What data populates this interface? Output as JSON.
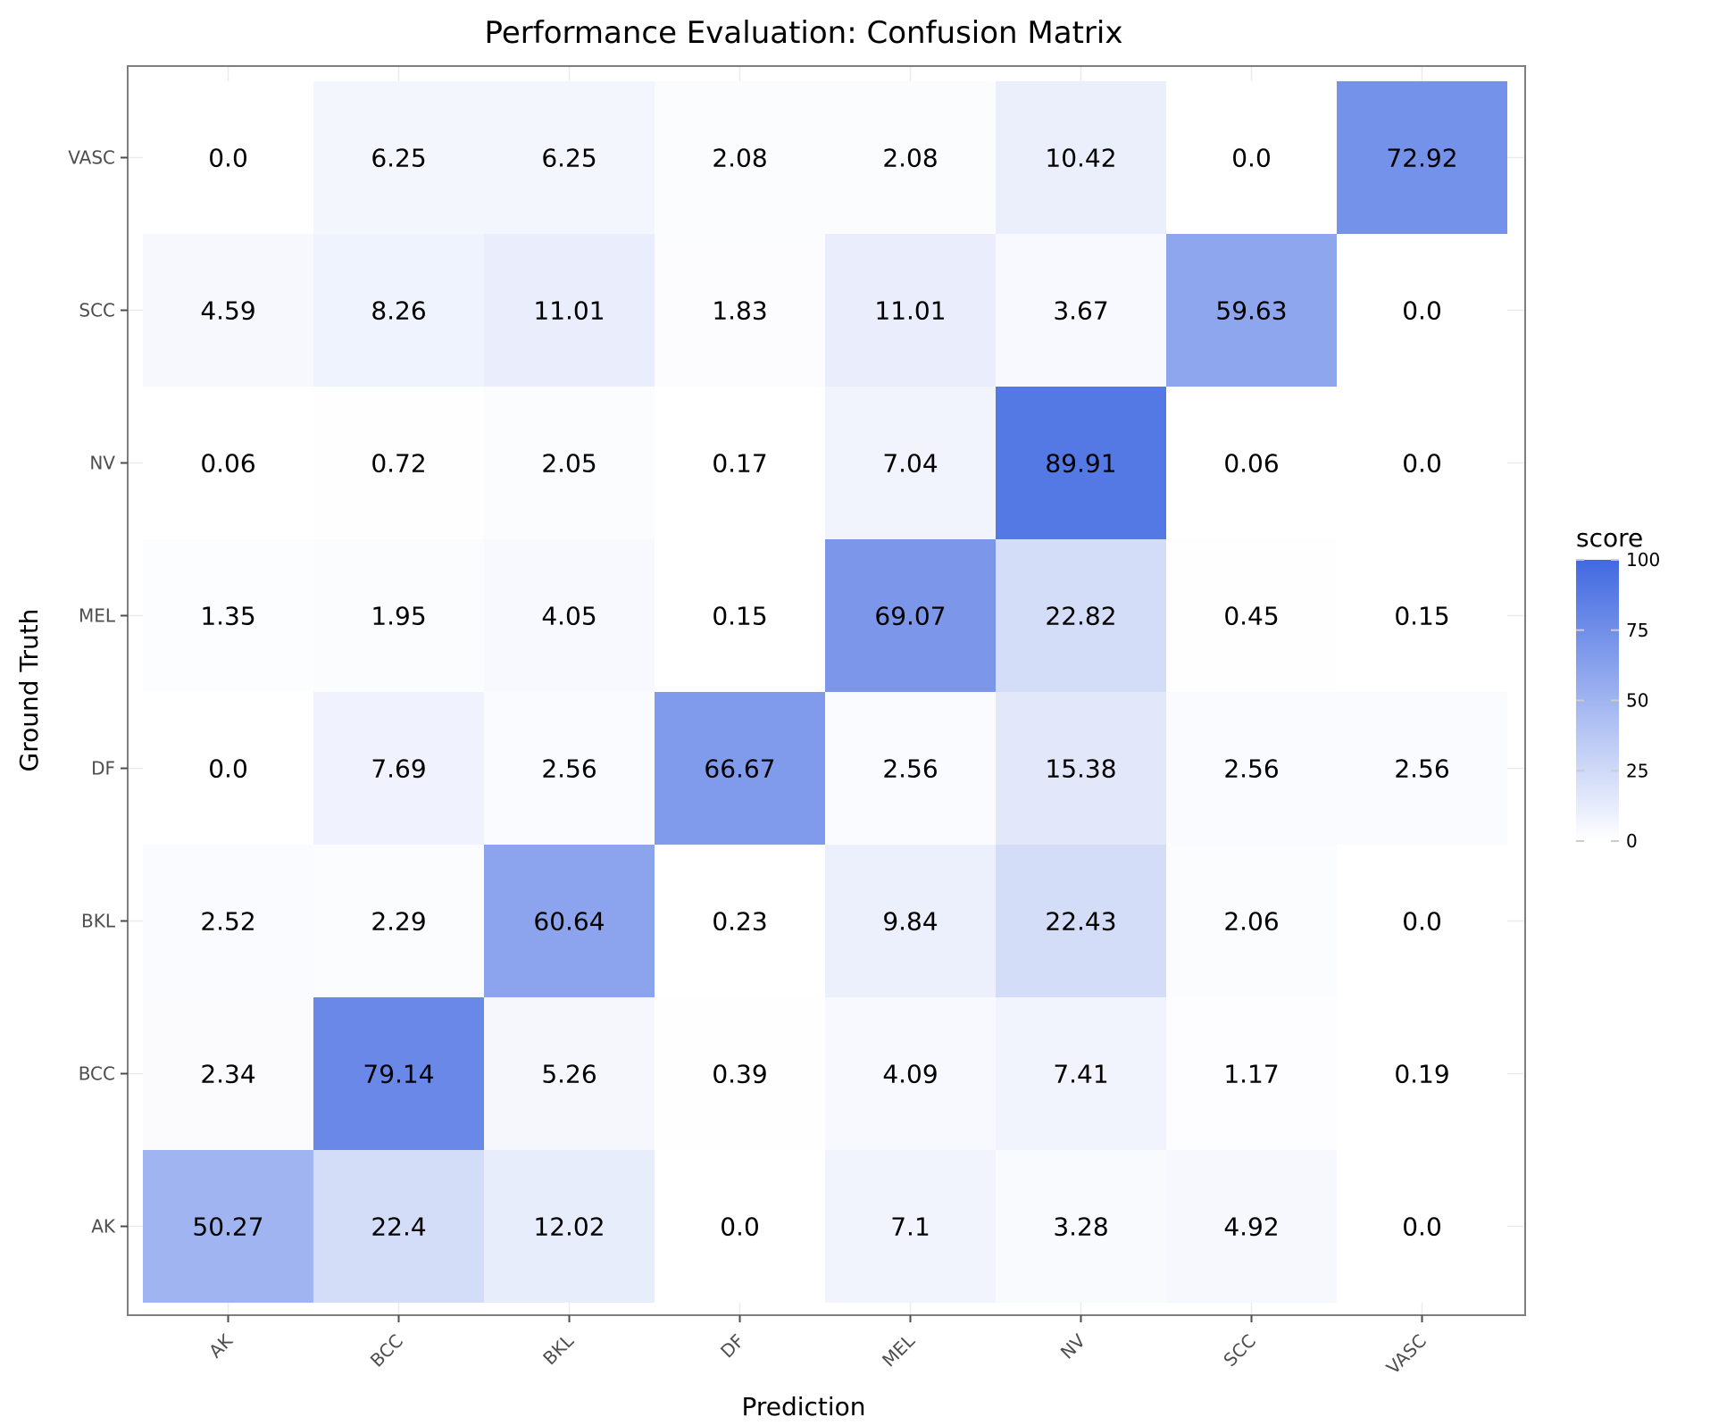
{
  "chart_data": {
    "type": "heatmap",
    "title": "Performance Evaluation: Confusion Matrix",
    "xlabel": "Prediction",
    "ylabel": "Ground Truth",
    "x_categories": [
      "AK",
      "BCC",
      "BKL",
      "DF",
      "MEL",
      "NV",
      "SCC",
      "VASC"
    ],
    "y_categories": [
      "AK",
      "BCC",
      "BKL",
      "DF",
      "MEL",
      "NV",
      "SCC",
      "VASC"
    ],
    "values": [
      [
        50.27,
        22.4,
        12.02,
        0.0,
        7.1,
        3.28,
        4.92,
        0.0
      ],
      [
        2.34,
        79.14,
        5.26,
        0.39,
        4.09,
        7.41,
        1.17,
        0.19
      ],
      [
        2.52,
        2.29,
        60.64,
        0.23,
        9.84,
        22.43,
        2.06,
        0.0
      ],
      [
        0.0,
        7.69,
        2.56,
        66.67,
        2.56,
        15.38,
        2.56,
        2.56
      ],
      [
        1.35,
        1.95,
        4.05,
        0.15,
        69.07,
        22.82,
        0.45,
        0.15
      ],
      [
        0.06,
        0.72,
        2.05,
        0.17,
        7.04,
        89.91,
        0.06,
        0.0
      ],
      [
        4.59,
        8.26,
        11.01,
        1.83,
        11.01,
        3.67,
        59.63,
        0.0
      ],
      [
        0.0,
        6.25,
        6.25,
        2.08,
        2.08,
        10.42,
        0.0,
        72.92
      ]
    ],
    "value_labels": [
      [
        "50.27",
        "22.4",
        "12.02",
        "0.0",
        "7.1",
        "3.28",
        "4.92",
        "0.0"
      ],
      [
        "2.34",
        "79.14",
        "5.26",
        "0.39",
        "4.09",
        "7.41",
        "1.17",
        "0.19"
      ],
      [
        "2.52",
        "2.29",
        "60.64",
        "0.23",
        "9.84",
        "22.43",
        "2.06",
        "0.0"
      ],
      [
        "0.0",
        "7.69",
        "2.56",
        "66.67",
        "2.56",
        "15.38",
        "2.56",
        "2.56"
      ],
      [
        "1.35",
        "1.95",
        "4.05",
        "0.15",
        "69.07",
        "22.82",
        "0.45",
        "0.15"
      ],
      [
        "0.06",
        "0.72",
        "2.05",
        "0.17",
        "7.04",
        "89.91",
        "0.06",
        "0.0"
      ],
      [
        "4.59",
        "8.26",
        "11.01",
        "1.83",
        "11.01",
        "3.67",
        "59.63",
        "0.0"
      ],
      [
        "0.0",
        "6.25",
        "6.25",
        "2.08",
        "2.08",
        "10.42",
        "0.0",
        "72.92"
      ]
    ],
    "legend": {
      "title": "score",
      "ticks": [
        0,
        25,
        50,
        75,
        100
      ],
      "range": [
        0,
        100
      ],
      "placement": "right"
    },
    "colors": {
      "low": "#ffffff",
      "high": "#4169e1",
      "panel_border": "#7f7f7f",
      "tick_color": "#4d4d4d"
    },
    "grid": true
  }
}
